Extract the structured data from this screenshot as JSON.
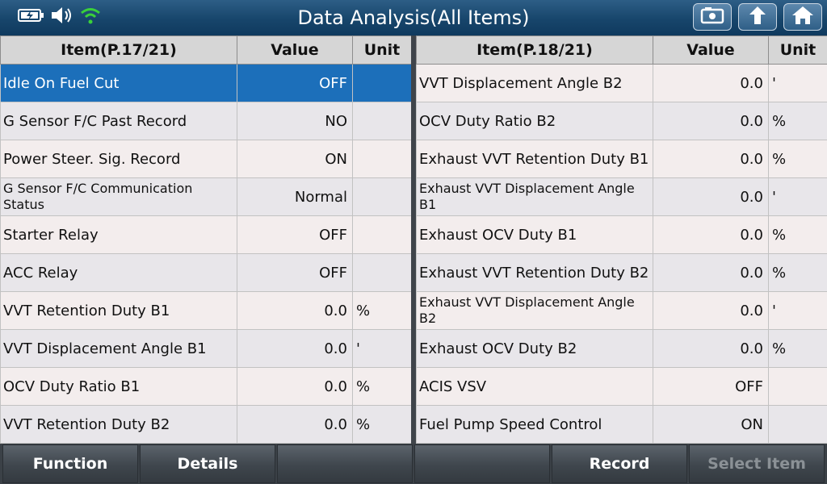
{
  "header": {
    "title": "Data Analysis(All Items)"
  },
  "left_table": {
    "columns": [
      "Item(P.17/21)",
      "Value",
      "Unit"
    ],
    "rows": [
      {
        "item": "Idle On Fuel Cut",
        "value": "OFF",
        "unit": ""
      },
      {
        "item": "G Sensor F/C Past Record",
        "value": "NO",
        "unit": ""
      },
      {
        "item": "Power Steer. Sig. Record",
        "value": "ON",
        "unit": ""
      },
      {
        "item": "G Sensor F/C Communication Status",
        "value": "Normal",
        "unit": ""
      },
      {
        "item": "Starter Relay",
        "value": "OFF",
        "unit": ""
      },
      {
        "item": "ACC Relay",
        "value": "OFF",
        "unit": ""
      },
      {
        "item": "VVT Retention Duty B1",
        "value": "0.0",
        "unit": "%"
      },
      {
        "item": "VVT Displacement Angle B1",
        "value": "0.0",
        "unit": "'"
      },
      {
        "item": "OCV Duty Ratio B1",
        "value": "0.0",
        "unit": "%"
      },
      {
        "item": "VVT Retention Duty B2",
        "value": "0.0",
        "unit": "%"
      }
    ]
  },
  "right_table": {
    "columns": [
      "Item(P.18/21)",
      "Value",
      "Unit"
    ],
    "rows": [
      {
        "item": "VVT Displacement Angle B2",
        "value": "0.0",
        "unit": "'"
      },
      {
        "item": "OCV Duty Ratio B2",
        "value": "0.0",
        "unit": "%"
      },
      {
        "item": "Exhaust VVT Retention Duty B1",
        "value": "0.0",
        "unit": "%"
      },
      {
        "item": "Exhaust VVT Displacement Angle B1",
        "value": "0.0",
        "unit": "'"
      },
      {
        "item": "Exhaust OCV Duty B1",
        "value": "0.0",
        "unit": "%"
      },
      {
        "item": "Exhaust VVT Retention Duty B2",
        "value": "0.0",
        "unit": "%"
      },
      {
        "item": "Exhaust VVT Displacement Angle B2",
        "value": "0.0",
        "unit": "'"
      },
      {
        "item": "Exhaust OCV Duty B2",
        "value": "0.0",
        "unit": "%"
      },
      {
        "item": "ACIS VSV",
        "value": "OFF",
        "unit": ""
      },
      {
        "item": "Fuel Pump Speed Control",
        "value": "ON",
        "unit": ""
      }
    ]
  },
  "bottom_bar": {
    "function": "Function",
    "details": "Details",
    "empty1": "",
    "empty2": "",
    "record": "Record",
    "select_item": "Select Item"
  },
  "colors": {
    "selected_row": "#1c6fba",
    "title_bar": "#17456b",
    "wifi": "#3ad13a"
  },
  "icons": [
    "battery-charging-icon",
    "speaker-icon",
    "wifi-icon",
    "screenshot-icon",
    "back-arrow-icon",
    "home-icon"
  ]
}
